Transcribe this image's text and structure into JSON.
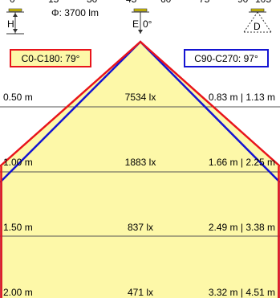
{
  "header": {
    "flux_label": "Φ: 3700 lm",
    "top_scale": [
      "0",
      "15",
      "30",
      "45",
      "60",
      "75",
      "90",
      "105"
    ],
    "icons": [
      {
        "name": "height-icon",
        "label": "H"
      },
      {
        "name": "illuminance-icon",
        "label": "E",
        "angle": "0°"
      },
      {
        "name": "diameter-icon",
        "label": "D"
      }
    ]
  },
  "beam_angles": {
    "c0_c180": {
      "label": "C0-C180: 79°",
      "color": "#e8141b"
    },
    "c90_c270": {
      "label": "C90-C270: 97°",
      "color": "#1414d2"
    }
  },
  "colors": {
    "cone_fill": "#fdf8a8",
    "grid": "#555555"
  },
  "rows": [
    {
      "height": "0.50 m",
      "lux": "7534 lx",
      "diameters": "0.83 m | 1.13 m"
    },
    {
      "height": "1.00 m",
      "lux": "1883 lx",
      "diameters": "1.66 m | 2.25 m"
    },
    {
      "height": "1.50 m",
      "lux": "837 lx",
      "diameters": "2.49 m | 3.38 m"
    },
    {
      "height": "2.00 m",
      "lux": "471 lx",
      "diameters": "3.32 m | 4.51 m"
    }
  ]
}
